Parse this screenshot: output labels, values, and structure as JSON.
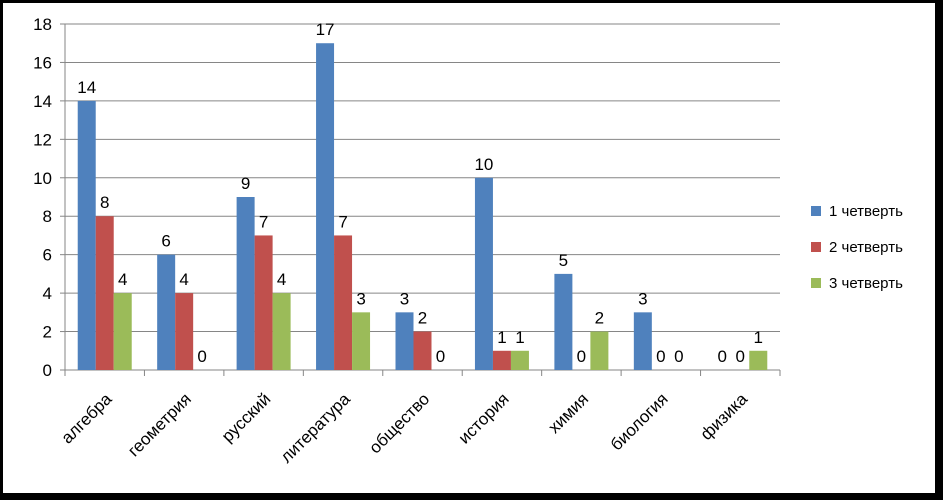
{
  "chart_data": {
    "type": "bar",
    "title": "",
    "xlabel": "",
    "ylabel": "",
    "ylim": [
      0,
      18
    ],
    "yticks": [
      0,
      2,
      4,
      6,
      8,
      10,
      12,
      14,
      16,
      18
    ],
    "grid": true,
    "legend_position": "right",
    "categories": [
      "алгебра",
      "геометрия",
      "русский",
      "литература",
      "общество",
      "история",
      "химия",
      "биология",
      "физика"
    ],
    "series": [
      {
        "name": "1 четверть",
        "color": "#4F81BD",
        "values": [
          14,
          6,
          9,
          17,
          3,
          10,
          5,
          3,
          0
        ]
      },
      {
        "name": "2 четверть",
        "color": "#C0504D",
        "values": [
          8,
          4,
          7,
          7,
          2,
          1,
          0,
          0,
          0
        ]
      },
      {
        "name": "3 четверть",
        "color": "#9BBB59",
        "values": [
          4,
          0,
          4,
          3,
          0,
          1,
          2,
          0,
          1
        ]
      }
    ]
  }
}
